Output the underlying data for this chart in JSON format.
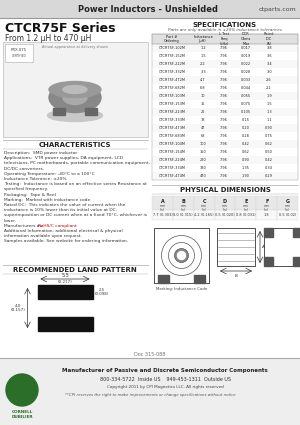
{
  "header_line": "Power Inductors - Unshielded",
  "header_right": "ctparts.com",
  "series_title": "CTCR75F Series",
  "series_subtitle": "From 1.2 μH to 470 μH",
  "bg_color": "#ffffff",
  "spec_title": "SPECIFICATIONS",
  "spec_note": "Parts are only available in ±20% inductance tolerances",
  "spec_data": [
    [
      "CTCR75F-102M",
      "CTCR75F-102",
      "1.2",
      "7.96",
      "0.017",
      "3.8"
    ],
    [
      "CTCR75F-152M",
      "CTCR75F-152",
      "1.5",
      "7.96",
      "0.019",
      "3.6"
    ],
    [
      "CTCR75F-222M",
      "CTCR75F-222",
      "2.2",
      "7.96",
      "0.022",
      "3.4"
    ],
    [
      "CTCR75F-332M",
      "CTCR75F-332",
      "3.3",
      "7.96",
      "0.028",
      "3.0"
    ],
    [
      "CTCR75F-472M",
      "CTCR75F-472",
      "4.7",
      "7.96",
      "0.033",
      "2.6"
    ],
    [
      "CTCR75F-682M",
      "CTCR75F-682",
      "6.8",
      "7.96",
      "0.044",
      "2.2"
    ],
    [
      "CTCR75F-103M",
      "CTCR75F-103",
      "10",
      "7.96",
      "0.055",
      "1.9"
    ],
    [
      "CTCR75F-153M",
      "CTCR75F-153",
      "15",
      "7.96",
      "0.075",
      "1.5"
    ],
    [
      "CTCR75F-223M",
      "CTCR75F-223",
      "22",
      "7.96",
      "0.105",
      "1.3"
    ],
    [
      "CTCR75F-333M",
      "CTCR75F-333",
      "33",
      "7.96",
      "0.15",
      "1.1"
    ],
    [
      "CTCR75F-473M",
      "CTCR75F-473",
      "47",
      "7.96",
      "0.20",
      "0.90"
    ],
    [
      "CTCR75F-683M",
      "CTCR75F-683",
      "68",
      "7.96",
      "0.28",
      "0.75"
    ],
    [
      "CTCR75F-104M",
      "CTCR75F-104",
      "100",
      "7.96",
      "0.42",
      "0.62"
    ],
    [
      "CTCR75F-154M",
      "CTCR75F-154",
      "150",
      "7.96",
      "0.62",
      "0.50"
    ],
    [
      "CTCR75F-224M",
      "CTCR75F-224",
      "220",
      "7.96",
      "0.90",
      "0.42"
    ],
    [
      "CTCR75F-334M",
      "CTCR75F-334",
      "330",
      "7.96",
      "1.35",
      "0.34"
    ],
    [
      "CTCR75F-474M",
      "CTCR75F-474",
      "470",
      "7.96",
      "1.90",
      "0.29"
    ]
  ],
  "char_title": "CHARACTERISTICS",
  "char_lines": [
    "Description:  SMD power inductor",
    "Applications:  VTR power supplies, DA equipment, LCD",
    "televisions, PC motherboards, portable communication equipment,",
    "DC/DC converters.",
    "Operating Temperature: -40°C to a 100°C",
    "Inductance Tolerance: ±20%",
    "Testing:  Inductance is based on an effective series Resistance at",
    "specified frequency.",
    "Packaging:  Tape & Reel",
    "Marking:  Marked with inductance code",
    "Rated DC:  This indicates the value of current when the",
    "inductance is 10% lower than its initial value at DC.",
    "superimposition or DC current when at a fixed 70°C, whichever is",
    "lower.",
    "Manufacturers as:  RoHS/C compliant",
    "Additional Information: additional electrical & physical",
    "information available upon request.",
    "Samples available. See website for ordering information."
  ],
  "rohs_text": "RoHS/C compliant",
  "land_title": "RECOMMENDED LAND PATTERN",
  "phys_title": "PHYSICAL DIMENSIONS",
  "phys_col_labels": [
    "A\nmm\n(in)",
    "B\nmm\n(in)",
    "C\nmm\n(in)",
    "D\nmm\n(in)",
    "E\nmm\n(in)",
    "F\nmm\n(in)",
    "G\nmm\n(in)"
  ],
  "phys_row": [
    "7.7 (0.303)",
    "8.0 (0.315)",
    "4.2 (0.165)",
    "0.5 (0.020)",
    "0.8 (0.031)",
    "1.8",
    "0.5 (0.02)"
  ],
  "marking_note": "Marking: Inductance Code",
  "footer_line1": "Manufacturer of Passive and Discrete Semiconductor Components",
  "footer_line2": "800-334-5722  Inside US    949-453-1311  Outside US",
  "footer_line3": "Copyright 2011 by CPI Magnetics LLC. All rights reserved",
  "footer_line4": "**CPI reserves the right to make improvements or change specifications without notice",
  "doc_number": "Doc 315-088"
}
